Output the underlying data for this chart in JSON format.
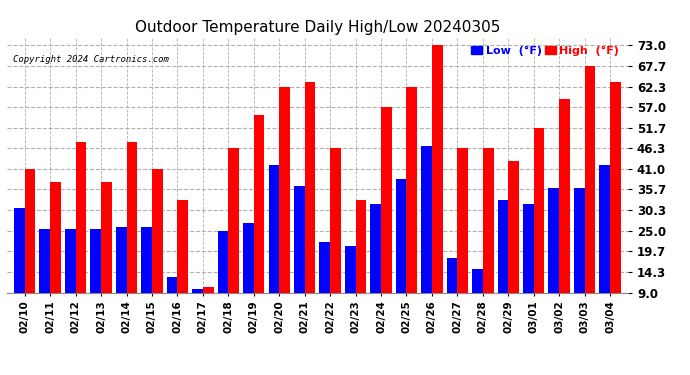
{
  "title": "Outdoor Temperature Daily High/Low 20240305",
  "copyright": "Copyright 2024 Cartronics.com",
  "dates": [
    "02/10",
    "02/11",
    "02/12",
    "02/13",
    "02/14",
    "02/15",
    "02/16",
    "02/17",
    "02/18",
    "02/19",
    "02/20",
    "02/21",
    "02/22",
    "02/23",
    "02/24",
    "02/25",
    "02/26",
    "02/27",
    "02/28",
    "02/29",
    "03/01",
    "03/02",
    "03/03",
    "03/04"
  ],
  "high": [
    41.0,
    37.5,
    48.0,
    37.5,
    48.0,
    41.0,
    33.0,
    10.5,
    46.3,
    55.0,
    62.3,
    63.5,
    46.3,
    33.0,
    57.0,
    62.3,
    73.0,
    46.3,
    46.3,
    43.0,
    51.7,
    59.0,
    67.7,
    63.5
  ],
  "low": [
    31.0,
    25.5,
    25.5,
    25.5,
    26.0,
    26.0,
    13.0,
    10.0,
    25.0,
    27.0,
    42.0,
    36.5,
    22.0,
    21.0,
    32.0,
    38.5,
    47.0,
    18.0,
    15.0,
    33.0,
    32.0,
    36.0,
    36.0,
    42.0
  ],
  "ylim": [
    9.0,
    75.0
  ],
  "yticks": [
    9.0,
    14.3,
    19.7,
    25.0,
    30.3,
    35.7,
    41.0,
    46.3,
    51.7,
    57.0,
    62.3,
    67.7,
    73.0
  ],
  "high_color": "#ff0000",
  "low_color": "#0000ff",
  "bg_color": "#ffffff",
  "grid_color": "#b0b0b0",
  "title_fontsize": 11,
  "bar_width": 0.42
}
